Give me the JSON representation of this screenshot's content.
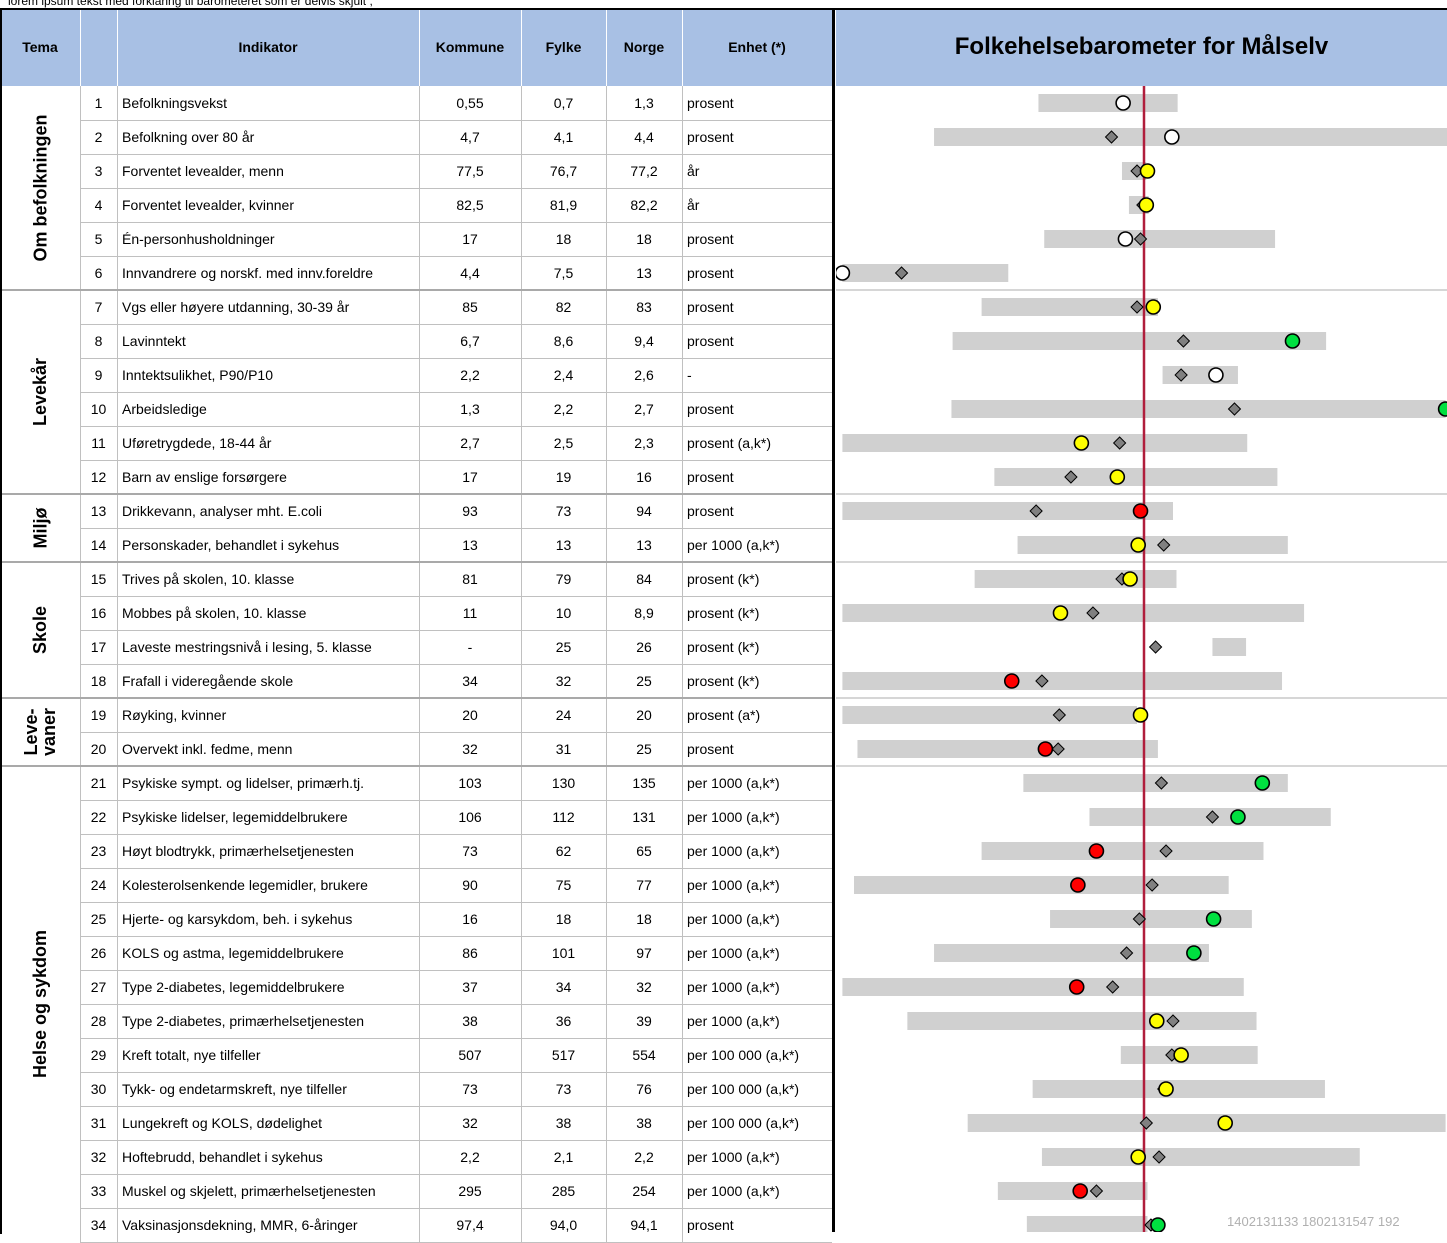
{
  "top_text": "lorem ipsum tekst med forklaring til barometeret som er delvis skjult ,",
  "footer_code": "1402131133 1802131547 192",
  "table": {
    "headers": {
      "tema": "Tema",
      "num": "",
      "indikator": "Indikator",
      "kommune": "Kommune",
      "fylke": "Fylke",
      "norge": "Norge",
      "enhet": "Enhet (*)"
    },
    "groups": [
      {
        "label": "Om befolkningen",
        "rows": [
          1,
          6
        ]
      },
      {
        "label": "Levekår",
        "rows": [
          7,
          12
        ]
      },
      {
        "label": "Miljø",
        "rows": [
          13,
          14
        ]
      },
      {
        "label": "Skole",
        "rows": [
          15,
          18
        ]
      },
      {
        "label": "Leve-\nvaner",
        "rows": [
          19,
          20
        ]
      },
      {
        "label": "Helse og sykdom",
        "rows": [
          21,
          34
        ]
      }
    ],
    "rows": [
      {
        "num": "1",
        "indikator": "Befolkningsvekst",
        "kommune": "0,55",
        "fylke": "0,7",
        "norge": "1,3",
        "enhet": "prosent"
      },
      {
        "num": "2",
        "indikator": "Befolkning over 80 år",
        "kommune": "4,7",
        "fylke": "4,1",
        "norge": "4,4",
        "enhet": "prosent"
      },
      {
        "num": "3",
        "indikator": "Forventet levealder, menn",
        "kommune": "77,5",
        "fylke": "76,7",
        "norge": "77,2",
        "enhet": "år"
      },
      {
        "num": "4",
        "indikator": "Forventet levealder, kvinner",
        "kommune": "82,5",
        "fylke": "81,9",
        "norge": "82,2",
        "enhet": "år"
      },
      {
        "num": "5",
        "indikator": "Én-personhusholdninger",
        "kommune": "17",
        "fylke": "18",
        "norge": "18",
        "enhet": "prosent"
      },
      {
        "num": "6",
        "indikator": "Innvandrere og norskf. med innv.foreldre",
        "kommune": "4,4",
        "fylke": "7,5",
        "norge": "13",
        "enhet": "prosent"
      },
      {
        "num": "7",
        "indikator": "Vgs eller høyere utdanning, 30-39 år",
        "kommune": "85",
        "fylke": "82",
        "norge": "83",
        "enhet": "prosent"
      },
      {
        "num": "8",
        "indikator": "Lavinntekt",
        "kommune": "6,7",
        "fylke": "8,6",
        "norge": "9,4",
        "enhet": "prosent"
      },
      {
        "num": "9",
        "indikator": "Inntektsulikhet, P90/P10",
        "kommune": "2,2",
        "fylke": "2,4",
        "norge": "2,6",
        "enhet": "-"
      },
      {
        "num": "10",
        "indikator": "Arbeidsledige",
        "kommune": "1,3",
        "fylke": "2,2",
        "norge": "2,7",
        "enhet": "prosent"
      },
      {
        "num": "11",
        "indikator": "Uføretrygdede, 18-44 år",
        "kommune": "2,7",
        "fylke": "2,5",
        "norge": "2,3",
        "enhet": "prosent (a,k*)"
      },
      {
        "num": "12",
        "indikator": "Barn av enslige forsørgere",
        "kommune": "17",
        "fylke": "19",
        "norge": "16",
        "enhet": "prosent"
      },
      {
        "num": "13",
        "indikator": "Drikkevann, analyser mht. E.coli",
        "kommune": "93",
        "fylke": "73",
        "norge": "94",
        "enhet": "prosent"
      },
      {
        "num": "14",
        "indikator": "Personskader, behandlet i sykehus",
        "kommune": "13",
        "fylke": "13",
        "norge": "13",
        "enhet": "per 1000 (a,k*)"
      },
      {
        "num": "15",
        "indikator": "Trives på skolen, 10. klasse",
        "kommune": "81",
        "fylke": "79",
        "norge": "84",
        "enhet": "prosent (k*)"
      },
      {
        "num": "16",
        "indikator": "Mobbes på skolen, 10. klasse",
        "kommune": "11",
        "fylke": "10",
        "norge": "8,9",
        "enhet": "prosent (k*)"
      },
      {
        "num": "17",
        "indikator": "Laveste mestringsnivå i lesing, 5. klasse",
        "kommune": "-",
        "fylke": "25",
        "norge": "26",
        "enhet": "prosent (k*)"
      },
      {
        "num": "18",
        "indikator": "Frafall i videregående skole",
        "kommune": "34",
        "fylke": "32",
        "norge": "25",
        "enhet": "prosent (k*)"
      },
      {
        "num": "19",
        "indikator": "Røyking, kvinner",
        "kommune": "20",
        "fylke": "24",
        "norge": "20",
        "enhet": "prosent (a*)"
      },
      {
        "num": "20",
        "indikator": "Overvekt inkl. fedme, menn",
        "kommune": "32",
        "fylke": "31",
        "norge": "25",
        "enhet": "prosent"
      },
      {
        "num": "21",
        "indikator": "Psykiske sympt. og lidelser, primærh.tj.",
        "kommune": "103",
        "fylke": "130",
        "norge": "135",
        "enhet": "per 1000 (a,k*)"
      },
      {
        "num": "22",
        "indikator": "Psykiske lidelser, legemiddelbrukere",
        "kommune": "106",
        "fylke": "112",
        "norge": "131",
        "enhet": "per 1000 (a,k*)"
      },
      {
        "num": "23",
        "indikator": "Høyt blodtrykk, primærhelsetjenesten",
        "kommune": "73",
        "fylke": "62",
        "norge": "65",
        "enhet": "per 1000 (a,k*)"
      },
      {
        "num": "24",
        "indikator": "Kolesterolsenkende legemidler, brukere",
        "kommune": "90",
        "fylke": "75",
        "norge": "77",
        "enhet": "per 1000 (a,k*)"
      },
      {
        "num": "25",
        "indikator": "Hjerte- og karsykdom, beh. i sykehus",
        "kommune": "16",
        "fylke": "18",
        "norge": "18",
        "enhet": "per 1000 (a,k*)"
      },
      {
        "num": "26",
        "indikator": "KOLS og astma, legemiddelbrukere",
        "kommune": "86",
        "fylke": "101",
        "norge": "97",
        "enhet": "per 1000 (a,k*)"
      },
      {
        "num": "27",
        "indikator": "Type 2-diabetes, legemiddelbrukere",
        "kommune": "37",
        "fylke": "34",
        "norge": "32",
        "enhet": "per 1000 (a,k*)"
      },
      {
        "num": "28",
        "indikator": "Type 2-diabetes, primærhelsetjenesten",
        "kommune": "38",
        "fylke": "36",
        "norge": "39",
        "enhet": "per 1000 (a,k*)"
      },
      {
        "num": "29",
        "indikator": "Kreft totalt, nye tilfeller",
        "kommune": "507",
        "fylke": "517",
        "norge": "554",
        "enhet": "per 100 000 (a,k*)"
      },
      {
        "num": "30",
        "indikator": "Tykk- og endetarmskreft, nye tilfeller",
        "kommune": "73",
        "fylke": "73",
        "norge": "76",
        "enhet": "per 100 000 (a,k*)"
      },
      {
        "num": "31",
        "indikator": "Lungekreft og KOLS, dødelighet",
        "kommune": "32",
        "fylke": "38",
        "norge": "38",
        "enhet": "per 100 000 (a,k*)"
      },
      {
        "num": "32",
        "indikator": "Hoftebrudd, behandlet i sykehus",
        "kommune": "2,2",
        "fylke": "2,1",
        "norge": "2,2",
        "enhet": "per 1000 (a,k*)"
      },
      {
        "num": "33",
        "indikator": "Muskel og skjelett, primærhelsetjenesten",
        "kommune": "295",
        "fylke": "285",
        "norge": "254",
        "enhet": "per 1000 (a,k*)"
      },
      {
        "num": "34",
        "indikator": "Vaksinasjonsdekning, MMR, 6-åringer",
        "kommune": "97,4",
        "fylke": "94,0",
        "norge": "94,1",
        "enhet": "prosent"
      }
    ]
  },
  "colors": {
    "header": "#a8c0e4",
    "bar": "#d0d0d0",
    "refline": "#b01e3c",
    "red": "#ff0000",
    "yellow": "#ffff00",
    "green": "#00e040",
    "white": "#ffffff",
    "diamond": "#808080"
  },
  "chart_data": {
    "type": "barometer",
    "title": "Folkehelsebarometer for Målselv",
    "reference": "Norge = 0 (red vertical line)",
    "xlim": [
      -2.6,
      2.6
    ],
    "note": "values are approximate standardized positions relative to the national level, read off the plot",
    "rows": [
      {
        "row": 1,
        "range": [
          -0.91,
          0.29
        ],
        "fylke": -0.18,
        "kommune": -0.18,
        "color": "white"
      },
      {
        "row": 2,
        "range": [
          -1.81,
          2.66
        ],
        "fylke": -0.28,
        "kommune": 0.24,
        "color": "white"
      },
      {
        "row": 3,
        "range": [
          -0.19,
          0.02
        ],
        "fylke": -0.06,
        "kommune": 0.03,
        "color": "yellow"
      },
      {
        "row": 4,
        "range": [
          -0.13,
          0.04
        ],
        "fylke": -0.01,
        "kommune": 0.02,
        "color": "yellow"
      },
      {
        "row": 5,
        "range": [
          -0.86,
          1.13
        ],
        "fylke": -0.03,
        "kommune": -0.16,
        "color": "white"
      },
      {
        "row": 6,
        "range": [
          -2.6,
          -1.17
        ],
        "fylke": -2.09,
        "kommune": -2.6,
        "color": "white"
      },
      {
        "row": 7,
        "range": [
          -1.4,
          0.12
        ],
        "fylke": -0.06,
        "kommune": 0.08,
        "color": "yellow"
      },
      {
        "row": 8,
        "range": [
          -1.65,
          1.57
        ],
        "fylke": 0.34,
        "kommune": 1.28,
        "color": "green"
      },
      {
        "row": 9,
        "range": [
          0.16,
          0.81
        ],
        "fylke": 0.32,
        "kommune": 0.62,
        "color": "white"
      },
      {
        "row": 10,
        "range": [
          -1.66,
          2.6
        ],
        "fylke": 0.78,
        "kommune": 2.6,
        "color": "green"
      },
      {
        "row": 11,
        "range": [
          -2.6,
          0.89
        ],
        "fylke": -0.21,
        "kommune": -0.54,
        "color": "yellow"
      },
      {
        "row": 12,
        "range": [
          -1.29,
          1.15
        ],
        "fylke": -0.63,
        "kommune": -0.23,
        "color": "yellow"
      },
      {
        "row": 13,
        "range": [
          -2.6,
          0.25
        ],
        "fylke": -0.93,
        "kommune": -0.03,
        "color": "red"
      },
      {
        "row": 14,
        "range": [
          -1.09,
          1.24
        ],
        "fylke": 0.17,
        "kommune": -0.05,
        "color": "yellow"
      },
      {
        "row": 15,
        "range": [
          -1.46,
          0.28
        ],
        "fylke": -0.19,
        "kommune": -0.12,
        "color": "yellow"
      },
      {
        "row": 16,
        "range": [
          -2.6,
          1.38
        ],
        "fylke": -0.44,
        "kommune": -0.72,
        "color": "yellow"
      },
      {
        "row": 17,
        "range": [
          0.59,
          0.88
        ],
        "fylke": 0.1,
        "kommune": null,
        "color": null
      },
      {
        "row": 18,
        "range": [
          -2.6,
          1.19
        ],
        "fylke": -0.88,
        "kommune": -1.14,
        "color": "red"
      },
      {
        "row": 19,
        "range": [
          -2.6,
          -0.06
        ],
        "fylke": -0.73,
        "kommune": -0.03,
        "color": "yellow"
      },
      {
        "row": 20,
        "range": [
          -2.47,
          0.12
        ],
        "fylke": -0.74,
        "kommune": -0.85,
        "color": "red"
      },
      {
        "row": 21,
        "range": [
          -1.04,
          1.24
        ],
        "fylke": 0.15,
        "kommune": 1.02,
        "color": "green"
      },
      {
        "row": 22,
        "range": [
          -0.47,
          1.61
        ],
        "fylke": 0.59,
        "kommune": 0.81,
        "color": "green"
      },
      {
        "row": 23,
        "range": [
          -1.4,
          1.03
        ],
        "fylke": 0.19,
        "kommune": -0.41,
        "color": "red"
      },
      {
        "row": 24,
        "range": [
          -2.5,
          0.73
        ],
        "fylke": 0.07,
        "kommune": -0.57,
        "color": "red"
      },
      {
        "row": 25,
        "range": [
          -0.81,
          0.93
        ],
        "fylke": -0.04,
        "kommune": 0.6,
        "color": "green"
      },
      {
        "row": 26,
        "range": [
          -1.81,
          0.56
        ],
        "fylke": -0.15,
        "kommune": 0.43,
        "color": "green"
      },
      {
        "row": 27,
        "range": [
          -2.6,
          0.86
        ],
        "fylke": -0.27,
        "kommune": -0.58,
        "color": "red"
      },
      {
        "row": 28,
        "range": [
          -2.04,
          0.97
        ],
        "fylke": 0.25,
        "kommune": 0.11,
        "color": "yellow"
      },
      {
        "row": 29,
        "range": [
          -0.2,
          0.98
        ],
        "fylke": 0.24,
        "kommune": 0.32,
        "color": "yellow"
      },
      {
        "row": 30,
        "range": [
          -0.96,
          1.56
        ],
        "fylke": 0.17,
        "kommune": 0.19,
        "color": "yellow"
      },
      {
        "row": 31,
        "range": [
          -1.52,
          2.6
        ],
        "fylke": 0.02,
        "kommune": 0.7,
        "color": "yellow"
      },
      {
        "row": 32,
        "range": [
          -0.88,
          1.86
        ],
        "fylke": 0.13,
        "kommune": -0.05,
        "color": "yellow"
      },
      {
        "row": 33,
        "range": [
          -1.26,
          0.03
        ],
        "fylke": -0.41,
        "kommune": -0.55,
        "color": "red"
      },
      {
        "row": 34,
        "range": [
          -1.01,
          0.03
        ],
        "fylke": 0.06,
        "kommune": 0.12,
        "color": "green"
      }
    ]
  }
}
